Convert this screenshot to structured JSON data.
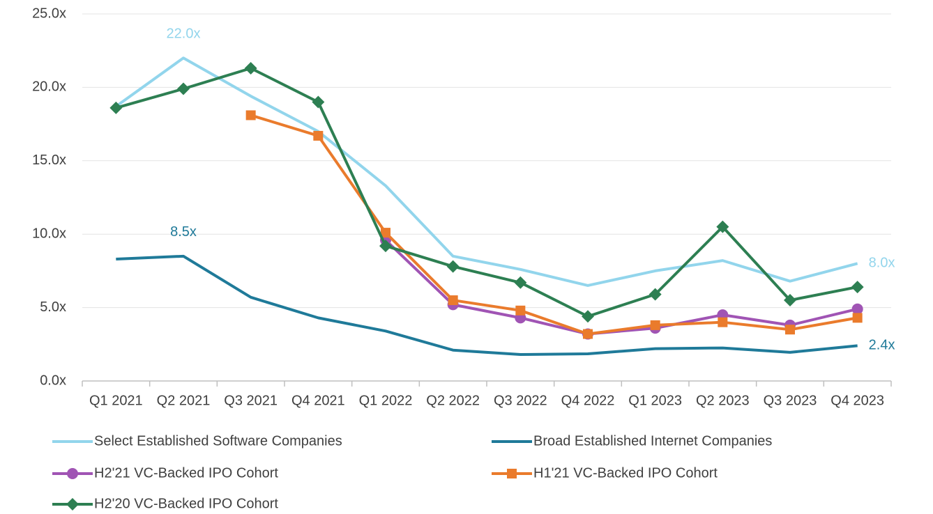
{
  "chart_data": {
    "type": "line",
    "categories": [
      "Q1 2021",
      "Q2 2021",
      "Q3 2021",
      "Q4 2021",
      "Q1 2022",
      "Q2 2022",
      "Q3 2022",
      "Q4 2022",
      "Q1 2023",
      "Q2 2023",
      "Q3 2023",
      "Q4 2023"
    ],
    "ylim": [
      0,
      25
    ],
    "yticks": [
      {
        "value": 0,
        "label": "0.0x"
      },
      {
        "value": 5,
        "label": "5.0x"
      },
      {
        "value": 10,
        "label": "10.0x"
      },
      {
        "value": 15,
        "label": "15.0x"
      },
      {
        "value": 20,
        "label": "20.0x"
      },
      {
        "value": 25,
        "label": "25.0x"
      }
    ],
    "grid": true,
    "legend": "bottom",
    "series": [
      {
        "name": "Select Established Software Companies",
        "color": "#92d5ec",
        "marker": "none",
        "values": [
          18.7,
          22.0,
          19.4,
          17.0,
          13.3,
          8.5,
          7.6,
          6.5,
          7.5,
          8.2,
          6.8,
          8.0
        ],
        "value_labels": [
          null,
          "22.0x",
          null,
          null,
          null,
          null,
          null,
          null,
          null,
          null,
          null,
          "8.0x"
        ]
      },
      {
        "name": "Broad Established Internet Companies",
        "color": "#1f7a99",
        "marker": "none",
        "values": [
          8.3,
          8.5,
          5.7,
          4.3,
          3.4,
          2.1,
          1.8,
          1.85,
          2.2,
          2.25,
          1.95,
          2.4
        ],
        "value_labels": [
          null,
          "8.5x",
          null,
          null,
          null,
          null,
          null,
          null,
          null,
          null,
          null,
          "2.4x"
        ]
      },
      {
        "name": "H2'21 VC-Backed IPO Cohort",
        "color": "#a054b4",
        "marker": "circle",
        "values": [
          null,
          null,
          null,
          null,
          9.6,
          5.2,
          4.3,
          3.2,
          3.6,
          4.5,
          3.8,
          4.9
        ]
      },
      {
        "name": "H1'21 VC-Backed IPO Cohort",
        "color": "#ea7b2c",
        "marker": "square",
        "values": [
          null,
          null,
          18.1,
          16.7,
          10.1,
          5.5,
          4.8,
          3.2,
          3.8,
          4.0,
          3.5,
          4.3
        ]
      },
      {
        "name": "H2'20 VC-Backed IPO Cohort",
        "color": "#2d7f52",
        "marker": "diamond",
        "values": [
          18.6,
          19.9,
          21.3,
          19.0,
          9.2,
          7.8,
          6.7,
          4.4,
          5.9,
          10.5,
          5.5,
          6.4
        ]
      }
    ]
  }
}
